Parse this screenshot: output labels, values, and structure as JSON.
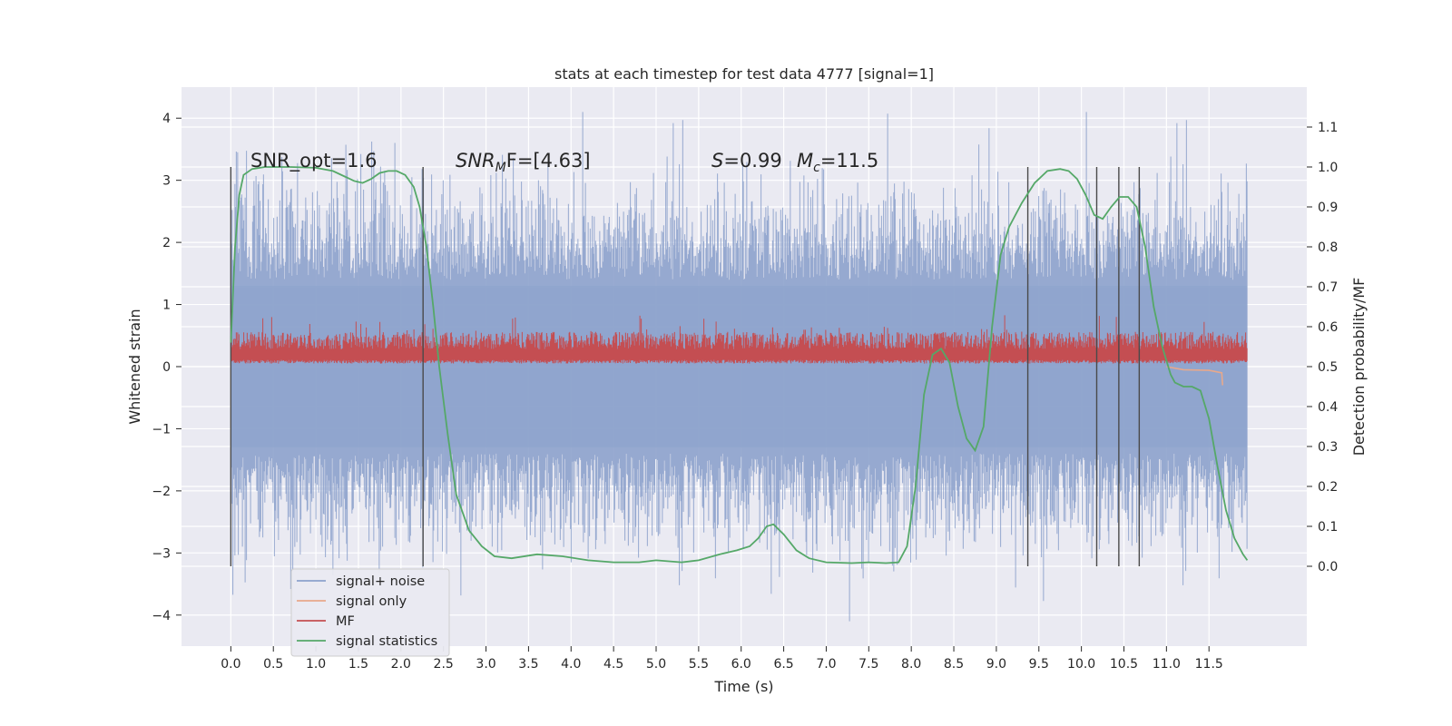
{
  "chart_data": {
    "type": "line",
    "title": "stats at each timestep for test data 4777 [signal=1]",
    "xlabel": "Time (s)",
    "ylabel_left": "Whitened strain",
    "ylabel_right": "Detection probability/MF",
    "xlim": [
      -0.58,
      12.65
    ],
    "ylim_left": [
      -4.5,
      4.5
    ],
    "ylim_right": [
      -0.2,
      1.2
    ],
    "x_ticks": [
      "0.0",
      "0.5",
      "1.0",
      "1.5",
      "2.0",
      "2.5",
      "3.0",
      "3.5",
      "4.0",
      "4.5",
      "5.0",
      "5.5",
      "6.0",
      "6.5",
      "7.0",
      "7.5",
      "8.0",
      "8.5",
      "9.0",
      "9.5",
      "10.0",
      "10.5",
      "11.0",
      "11.5"
    ],
    "y_ticks_left": [
      "4",
      "3",
      "2",
      "1",
      "0",
      "−1",
      "−2",
      "−3",
      "−4"
    ],
    "y_ticks_right": [
      "1.1",
      "1.0",
      "0.9",
      "0.8",
      "0.7",
      "0.6",
      "0.5",
      "0.4",
      "0.3",
      "0.2",
      "0.1",
      "0.0"
    ],
    "grid": true,
    "legend_position": "lower-left",
    "annotations": {
      "snr_opt": "SNR_opt=1.6",
      "snr_mf_main": "SNR",
      "snr_mf_sub": "M",
      "snr_mf_rest": "F=[4.63]",
      "s_var": "S",
      "s_val": "=0.99",
      "mc_var": "M",
      "mc_sub": "c",
      "mc_val": "=11.5"
    },
    "series": [
      {
        "name": "signal+ noise",
        "color": "#8da2cc",
        "kind": "noise",
        "x_range": [
          0.0,
          11.95
        ],
        "y_range_approx": [
          -4.1,
          4.1
        ]
      },
      {
        "name": "signal only",
        "color": "#e8a88b",
        "kind": "line",
        "x": [
          11.0,
          11.2,
          11.5,
          11.65,
          11.66
        ],
        "y": [
          0.0,
          -0.05,
          -0.06,
          -0.1,
          -0.3
        ]
      },
      {
        "name": "MF",
        "color": "#c44e52",
        "kind": "band",
        "x_range": [
          0.0,
          11.95
        ],
        "y_range_approx": [
          0.0,
          1.0
        ]
      },
      {
        "name": "signal statistics",
        "color": "#55a868",
        "kind": "line",
        "x": [
          0.0,
          0.05,
          0.1,
          0.15,
          0.25,
          0.4,
          0.7,
          1.0,
          1.2,
          1.35,
          1.45,
          1.55,
          1.65,
          1.75,
          1.85,
          1.95,
          2.05,
          2.15,
          2.22,
          2.3,
          2.38,
          2.45,
          2.55,
          2.65,
          2.8,
          2.95,
          3.1,
          3.3,
          3.6,
          3.9,
          4.2,
          4.5,
          4.8,
          5.0,
          5.3,
          5.5,
          5.75,
          5.95,
          6.1,
          6.2,
          6.3,
          6.38,
          6.5,
          6.65,
          6.8,
          7.0,
          7.3,
          7.5,
          7.7,
          7.85,
          7.95,
          8.05,
          8.15,
          8.25,
          8.35,
          8.45,
          8.55,
          8.65,
          8.75,
          8.85,
          8.95,
          9.05,
          9.15,
          9.3,
          9.45,
          9.6,
          9.75,
          9.85,
          9.95,
          10.05,
          10.15,
          10.25,
          10.35,
          10.45,
          10.55,
          10.65,
          10.75,
          10.85,
          10.95,
          11.05,
          11.1,
          11.2,
          11.3,
          11.4,
          11.5,
          11.6,
          11.7,
          11.8,
          11.9,
          11.95
        ],
        "y": [
          0.56,
          0.8,
          0.93,
          0.98,
          0.995,
          1.0,
          1.0,
          0.998,
          0.99,
          0.975,
          0.965,
          0.96,
          0.97,
          0.985,
          0.99,
          0.99,
          0.98,
          0.95,
          0.9,
          0.8,
          0.65,
          0.5,
          0.33,
          0.18,
          0.09,
          0.05,
          0.025,
          0.02,
          0.03,
          0.025,
          0.015,
          0.01,
          0.01,
          0.015,
          0.01,
          0.015,
          0.03,
          0.04,
          0.05,
          0.07,
          0.1,
          0.105,
          0.08,
          0.04,
          0.02,
          0.01,
          0.008,
          0.01,
          0.008,
          0.01,
          0.05,
          0.2,
          0.43,
          0.53,
          0.545,
          0.51,
          0.4,
          0.32,
          0.29,
          0.35,
          0.6,
          0.78,
          0.85,
          0.91,
          0.96,
          0.99,
          0.995,
          0.99,
          0.97,
          0.93,
          0.88,
          0.87,
          0.9,
          0.925,
          0.925,
          0.9,
          0.8,
          0.65,
          0.55,
          0.48,
          0.46,
          0.45,
          0.45,
          0.44,
          0.37,
          0.25,
          0.14,
          0.07,
          0.03,
          0.015
        ]
      }
    ],
    "event_markers_x": [
      0.0,
      2.26,
      9.37,
      10.18,
      10.44,
      10.68
    ]
  }
}
